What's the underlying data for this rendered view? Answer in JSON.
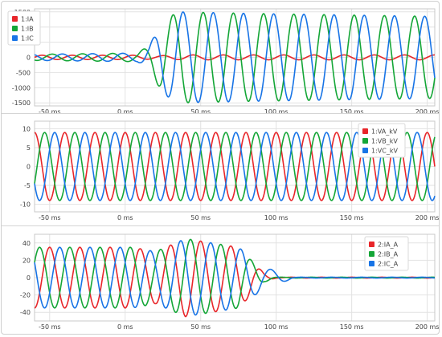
{
  "chart_data": [
    {
      "type": "line",
      "title": "",
      "x_tick_labels": [
        "-50 ms",
        "0 ms",
        "50 ms",
        "100 ms",
        "150 ms",
        "200 ms"
      ],
      "x_ticks": [
        -50,
        0,
        50,
        100,
        150,
        200
      ],
      "xlim": [
        -60,
        205
      ],
      "ylim": [
        -1600,
        1600
      ],
      "y_ticks": [
        -1500,
        -1000,
        -500,
        0,
        500,
        1000,
        1500
      ],
      "y_tick_labels": [
        "-1500",
        "-1000",
        "-500",
        "0",
        "500",
        "1000",
        "1500"
      ],
      "grid": true,
      "legend_placement": "top-left",
      "series": [
        {
          "name": "1:IA",
          "color": "#e8262a",
          "phase_deg": 0,
          "envelope": [
            [
              -60,
              70
            ],
            [
              10,
              70
            ],
            [
              20,
              50
            ],
            [
              40,
              80
            ],
            [
              205,
              80
            ]
          ]
        },
        {
          "name": "1:IB",
          "color": "#14a637",
          "phase_deg": -120,
          "envelope": [
            [
              -60,
              100
            ],
            [
              8,
              140
            ],
            [
              16,
              400
            ],
            [
              25,
              1200
            ],
            [
              35,
              1500
            ],
            [
              80,
              1450
            ],
            [
              205,
              1350
            ]
          ]
        },
        {
          "name": "1:IC",
          "color": "#1874e6",
          "phase_deg": 120,
          "envelope": [
            [
              -60,
              100
            ],
            [
              8,
              140
            ],
            [
              16,
              400
            ],
            [
              25,
              1200
            ],
            [
              35,
              1500
            ],
            [
              80,
              1450
            ],
            [
              205,
              1350
            ]
          ]
        }
      ]
    },
    {
      "type": "line",
      "title": "",
      "x_tick_labels": [
        "-50 ms",
        "0 ms",
        "50 ms",
        "100 ms",
        "150 ms",
        "200 ms"
      ],
      "x_ticks": [
        -50,
        0,
        50,
        100,
        150,
        200
      ],
      "xlim": [
        -60,
        205
      ],
      "ylim": [
        -12,
        12
      ],
      "y_ticks": [
        -10,
        -5,
        0,
        5,
        10
      ],
      "y_tick_labels": [
        "-10",
        "-5",
        "0",
        "5",
        "10"
      ],
      "grid": true,
      "legend_placement": "top-right",
      "series": [
        {
          "name": "1:VA_kV",
          "color": "#e8262a",
          "phase_deg": 90,
          "envelope": [
            [
              -60,
              9
            ],
            [
              205,
              9
            ]
          ]
        },
        {
          "name": "1:VB_kV",
          "color": "#14a637",
          "phase_deg": -30,
          "envelope": [
            [
              -60,
              9
            ],
            [
              205,
              9
            ]
          ]
        },
        {
          "name": "1:VC_kV",
          "color": "#1874e6",
          "phase_deg": 210,
          "envelope": [
            [
              -60,
              9
            ],
            [
              205,
              9
            ]
          ]
        }
      ]
    },
    {
      "type": "line",
      "title": "",
      "x_tick_labels": [
        "-50 ms",
        "0 ms",
        "50 ms",
        "100 ms",
        "150 ms",
        "200 ms"
      ],
      "x_ticks": [
        -50,
        0,
        50,
        100,
        150,
        200
      ],
      "xlim": [
        -60,
        205
      ],
      "ylim": [
        -50,
        50
      ],
      "y_ticks": [
        -40,
        -20,
        0,
        20,
        40
      ],
      "y_tick_labels": [
        "-40",
        "-20",
        "0",
        "20",
        "40"
      ],
      "grid": true,
      "legend_placement": "top-right",
      "series": [
        {
          "name": "2:IA_A",
          "color": "#e8262a",
          "phase_deg": -90,
          "envelope": [
            [
              -60,
              35
            ],
            [
              5,
              35
            ],
            [
              20,
              30
            ],
            [
              40,
              45
            ],
            [
              75,
              35
            ],
            [
              92,
              5
            ],
            [
              100,
              0.5
            ],
            [
              205,
              0.5
            ]
          ]
        },
        {
          "name": "2:IB_A",
          "color": "#14a637",
          "phase_deg": 30,
          "envelope": [
            [
              -60,
              35
            ],
            [
              5,
              35
            ],
            [
              20,
              30
            ],
            [
              40,
              45
            ],
            [
              75,
              35
            ],
            [
              92,
              5
            ],
            [
              100,
              0.5
            ],
            [
              205,
              0.5
            ]
          ]
        },
        {
          "name": "2:IC_A",
          "color": "#1874e6",
          "phase_deg": 150,
          "envelope": [
            [
              -60,
              35
            ],
            [
              5,
              35
            ],
            [
              20,
              30
            ],
            [
              40,
              45
            ],
            [
              75,
              35
            ],
            [
              92,
              12
            ],
            [
              103,
              6
            ],
            [
              112,
              0.5
            ],
            [
              205,
              0.5
            ]
          ]
        }
      ]
    }
  ]
}
